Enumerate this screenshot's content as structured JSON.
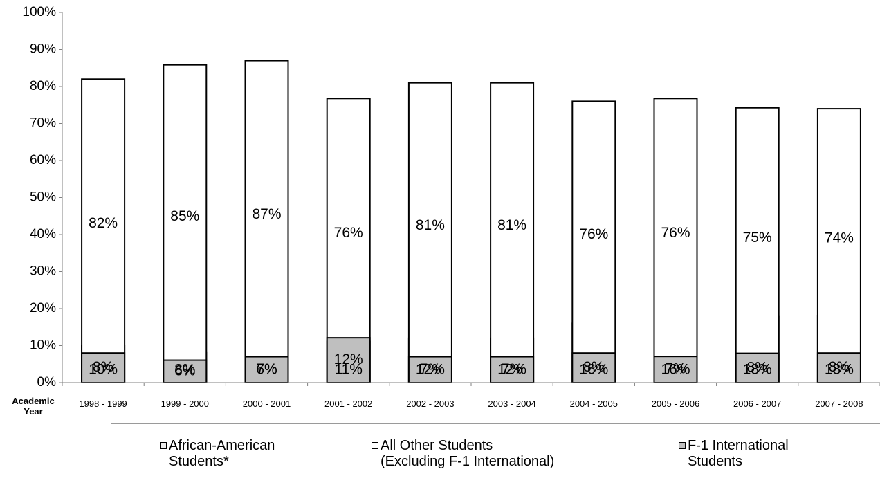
{
  "chart_data": {
    "type": "bar",
    "stacked": true,
    "title": "",
    "xlabel": "Academic\nYear",
    "ylabel": "",
    "ylim": [
      0,
      100
    ],
    "ytick_labels": [
      "0%",
      "10%",
      "20%",
      "30%",
      "40%",
      "50%",
      "60%",
      "70%",
      "80%",
      "90%",
      "100%"
    ],
    "categories": [
      "1998 - 1999",
      "1999 - 2000",
      "2000 - 2001",
      "2001 - 2002",
      "2002 - 2003",
      "2003 - 2004",
      "2004 - 2005",
      "2005 - 2006",
      "2006 - 2007",
      "2007 - 2008"
    ],
    "series": [
      {
        "name": "African-American\nStudents*",
        "fill": "#ececec",
        "pattern": "dotted",
        "values": [
          10,
          8,
          6,
          11,
          12,
          12,
          16,
          16,
          18,
          18
        ],
        "labels": [
          "10%",
          "8%",
          "6%",
          "11%",
          "12%",
          "12%",
          "16%",
          "16%",
          "18%",
          "18%"
        ]
      },
      {
        "name": "All Other Students\n(Excluding F-1 International)",
        "fill": "#ffffff",
        "pattern": "none",
        "values": [
          82,
          85,
          87,
          76,
          81,
          81,
          76,
          76,
          75,
          74
        ],
        "labels": [
          "82%",
          "85%",
          "87%",
          "76%",
          "81%",
          "81%",
          "76%",
          "76%",
          "75%",
          "74%"
        ]
      },
      {
        "name": "F-1 International\nStudents",
        "fill": "#bfbfbf",
        "pattern": "none",
        "values": [
          8,
          6,
          7,
          12,
          7,
          7,
          8,
          7,
          8,
          8
        ],
        "labels": [
          "8%",
          "6%",
          "7%",
          "12%",
          "7%",
          "7%",
          "8%",
          "7%",
          "8%",
          "8%"
        ]
      }
    ],
    "grid": false,
    "legend": "bottom"
  }
}
